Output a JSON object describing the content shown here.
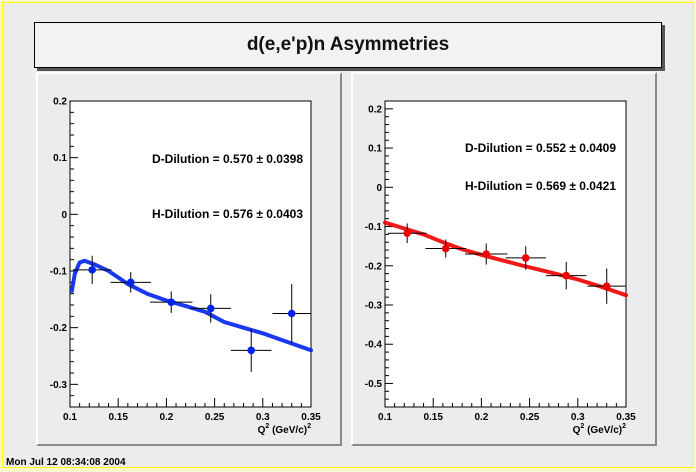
{
  "title": "d(e,e'p)n Asymmetries",
  "timestamp": "Mon Jul 12 08:34:08 2004",
  "chart_data": [
    {
      "type": "scatter",
      "xlim": [
        0.1,
        0.35
      ],
      "ylim": [
        -0.34,
        0.2
      ],
      "x_ticks": [
        "0.1",
        "0.15",
        "0.2",
        "0.25",
        "0.3",
        "0.35"
      ],
      "y_ticks": [
        "0.2",
        "0.1",
        "0",
        "-0.1",
        "-0.2",
        "-0.3"
      ],
      "xlabel_main": "Q",
      "xlabel_sup": "2",
      "xlabel_rest": " (GeV/c)",
      "xlabel_sup2": "2",
      "annotations": [
        {
          "text": "D-Dilution = 0.570 ± 0.0398",
          "x": 0.35,
          "y": 0.15
        },
        {
          "text": "H-Dilution = 0.576 ± 0.0403",
          "x": 0.35,
          "y": 0.05
        }
      ],
      "points": [
        {
          "x": 0.123,
          "y": -0.098,
          "xerr": 0.02,
          "yerr": 0.025
        },
        {
          "x": 0.163,
          "y": -0.12,
          "xerr": 0.021,
          "yerr": 0.018
        },
        {
          "x": 0.205,
          "y": -0.155,
          "xerr": 0.022,
          "yerr": 0.019
        },
        {
          "x": 0.246,
          "y": -0.166,
          "xerr": 0.021,
          "yerr": 0.025
        },
        {
          "x": 0.288,
          "y": -0.24,
          "xerr": 0.021,
          "yerr": 0.038
        },
        {
          "x": 0.33,
          "y": -0.175,
          "xerr": 0.02,
          "yerr": 0.052
        }
      ],
      "curve": [
        [
          0.102,
          -0.135
        ],
        [
          0.105,
          -0.105
        ],
        [
          0.11,
          -0.085
        ],
        [
          0.115,
          -0.082
        ],
        [
          0.125,
          -0.088
        ],
        [
          0.14,
          -0.1
        ],
        [
          0.16,
          -0.123
        ],
        [
          0.18,
          -0.14
        ],
        [
          0.2,
          -0.152
        ],
        [
          0.22,
          -0.162
        ],
        [
          0.24,
          -0.172
        ],
        [
          0.26,
          -0.19
        ],
        [
          0.28,
          -0.2
        ],
        [
          0.3,
          -0.21
        ],
        [
          0.32,
          -0.222
        ],
        [
          0.35,
          -0.24
        ]
      ],
      "color": "#0022ee"
    },
    {
      "type": "scatter",
      "xlim": [
        0.1,
        0.35
      ],
      "ylim": [
        -0.56,
        0.22
      ],
      "x_ticks": [
        "0.1",
        "0.15",
        "0.2",
        "0.25",
        "0.3",
        "0.35"
      ],
      "y_ticks": [
        "0.2",
        "0.1",
        "0",
        "-0.1",
        "-0.2",
        "-0.3",
        "-0.4",
        "-0.5"
      ],
      "xlabel_main": "Q",
      "xlabel_sup": "2",
      "xlabel_rest": " (GeV/c)",
      "xlabel_sup2": "2",
      "annotations": [
        {
          "text": "D-Dilution = 0.552 ± 0.0409",
          "x": 0.35,
          "y": 0.1
        },
        {
          "text": "H-Dilution = 0.569 ± 0.0421",
          "x": 0.35,
          "y": 0.0
        }
      ],
      "points": [
        {
          "x": 0.123,
          "y": -0.117,
          "xerr": 0.02,
          "yerr": 0.025
        },
        {
          "x": 0.163,
          "y": -0.156,
          "xerr": 0.021,
          "yerr": 0.023
        },
        {
          "x": 0.205,
          "y": -0.17,
          "xerr": 0.022,
          "yerr": 0.027
        },
        {
          "x": 0.246,
          "y": -0.18,
          "xerr": 0.021,
          "yerr": 0.03
        },
        {
          "x": 0.288,
          "y": -0.225,
          "xerr": 0.021,
          "yerr": 0.035
        },
        {
          "x": 0.33,
          "y": -0.252,
          "xerr": 0.02,
          "yerr": 0.045
        }
      ],
      "curve": [
        [
          0.1,
          -0.09
        ],
        [
          0.12,
          -0.105
        ],
        [
          0.14,
          -0.12
        ],
        [
          0.16,
          -0.14
        ],
        [
          0.18,
          -0.158
        ],
        [
          0.2,
          -0.172
        ],
        [
          0.22,
          -0.185
        ],
        [
          0.24,
          -0.198
        ],
        [
          0.26,
          -0.21
        ],
        [
          0.28,
          -0.222
        ],
        [
          0.3,
          -0.235
        ],
        [
          0.32,
          -0.25
        ],
        [
          0.35,
          -0.275
        ]
      ],
      "color": "#ee0000"
    }
  ]
}
